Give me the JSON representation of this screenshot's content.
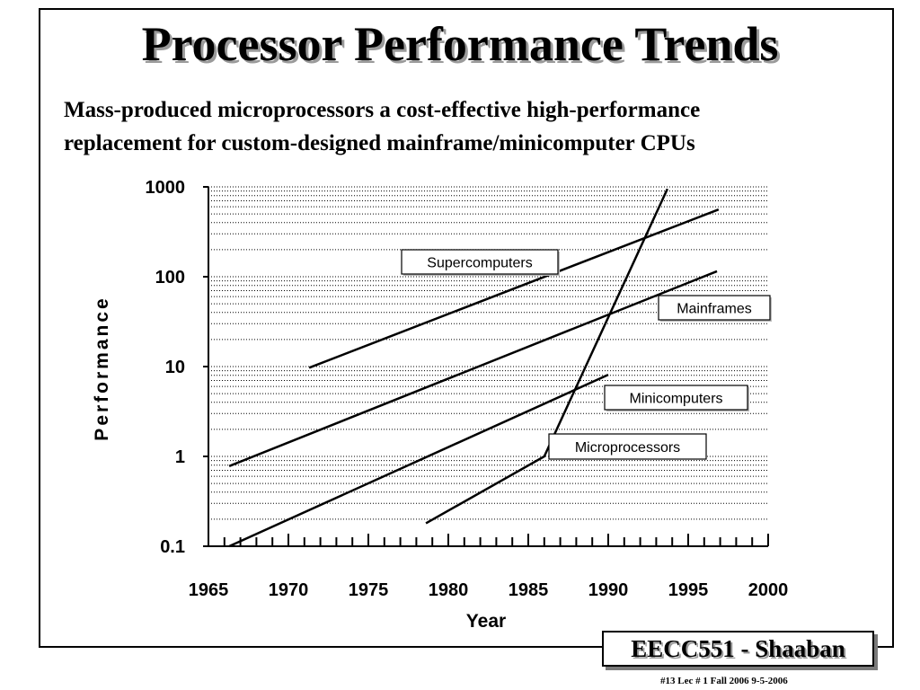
{
  "slide": {
    "title": "Processor Performance Trends",
    "subtitle_line1": "Mass-produced microprocessors a cost-effective high-performance",
    "subtitle_line2": "replacement for custom-designed mainframe/minicomputer CPUs",
    "footer_course": "EECC551 - Shaaban",
    "footer_note": "#13   Lec # 1  Fall 2006   9-5-2006"
  },
  "chart_data": {
    "type": "line",
    "title": "",
    "xlabel": "Year",
    "ylabel": "Performance",
    "x_ticks": [
      1965,
      1970,
      1975,
      1980,
      1985,
      1990,
      1995,
      2000
    ],
    "xlim": [
      1965,
      2000
    ],
    "y_scale": "log",
    "y_ticks": [
      0.1,
      1,
      10,
      100,
      1000
    ],
    "y_tick_labels": [
      "0.1",
      "1",
      "10",
      "100",
      "1000"
    ],
    "ylim": [
      0.1,
      1000
    ],
    "grid": "horizontal dotted",
    "series": [
      {
        "name": "Supercomputers",
        "x": [
          1971.3,
          1996.9
        ],
        "y": [
          9.7,
          560
        ]
      },
      {
        "name": "Mainframes",
        "x": [
          1966.3,
          1996.8
        ],
        "y": [
          0.78,
          115
        ]
      },
      {
        "name": "Minicomputers",
        "x": [
          1966.3,
          1990.0
        ],
        "y": [
          0.1,
          8.1
        ]
      },
      {
        "name": "Microprocessors",
        "x": [
          1978.6,
          1986.0,
          1993.7
        ],
        "y": [
          0.18,
          1.0,
          950
        ]
      }
    ]
  }
}
